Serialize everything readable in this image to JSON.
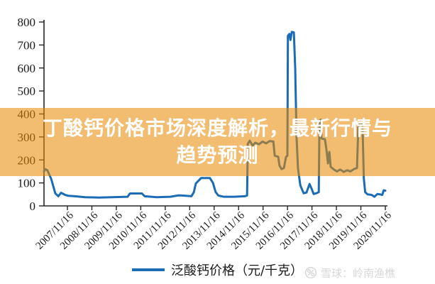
{
  "banner": {
    "line1": "丁酸钙价格市场深度解析，最新行情与",
    "line2": "趋势预测",
    "bg_color": "#E78902",
    "text_color": "#FFFFFF"
  },
  "legend": {
    "label": "泛酸钙价格（元/千克）",
    "line_color": "#1B6CB5"
  },
  "watermark": {
    "icon": "xueqiu-snowball-icon",
    "text": "雪球：岭南渔樵",
    "color": "#D7D7D7"
  },
  "chart_data": {
    "type": "line",
    "title": "",
    "xlabel": "",
    "ylabel": "",
    "ylim": [
      0,
      800
    ],
    "yticks": [
      0,
      100,
      200,
      300,
      400,
      500,
      600,
      700,
      800
    ],
    "x_tick_labels": [
      "2007/11/16",
      "2008/11/16",
      "2009/11/16",
      "2010/11/16",
      "2011/11/16",
      "2012/11/16",
      "2013/11/16",
      "2014/11/16",
      "2015/11/16",
      "2016/11/16",
      "2017/11/16",
      "2018/11/16",
      "2019/11/16",
      "2020/11/16"
    ],
    "grid": false,
    "legend_position": "bottom",
    "axis_color": "#262626",
    "series": [
      {
        "name": "泛酸钙价格（元/千克）",
        "color": "#1B6CB5",
        "points": [
          [
            0.0,
            150
          ],
          [
            0.004,
            160
          ],
          [
            0.01,
            155
          ],
          [
            0.021,
            118
          ],
          [
            0.033,
            55
          ],
          [
            0.042,
            42
          ],
          [
            0.05,
            57
          ],
          [
            0.062,
            48
          ],
          [
            0.071,
            44
          ],
          [
            0.09,
            42
          ],
          [
            0.12,
            38
          ],
          [
            0.16,
            36
          ],
          [
            0.2,
            38
          ],
          [
            0.245,
            40
          ],
          [
            0.252,
            54
          ],
          [
            0.287,
            54
          ],
          [
            0.295,
            42
          ],
          [
            0.33,
            38
          ],
          [
            0.37,
            40
          ],
          [
            0.395,
            46
          ],
          [
            0.416,
            44
          ],
          [
            0.432,
            42
          ],
          [
            0.439,
            60
          ],
          [
            0.445,
            98
          ],
          [
            0.453,
            110
          ],
          [
            0.46,
            121
          ],
          [
            0.486,
            121
          ],
          [
            0.495,
            100
          ],
          [
            0.503,
            60
          ],
          [
            0.511,
            45
          ],
          [
            0.526,
            40
          ],
          [
            0.557,
            40
          ],
          [
            0.588,
            42
          ],
          [
            0.595,
            45
          ],
          [
            0.597,
            270
          ],
          [
            0.603,
            284
          ],
          [
            0.611,
            262
          ],
          [
            0.619,
            275
          ],
          [
            0.63,
            268
          ],
          [
            0.64,
            280
          ],
          [
            0.651,
            272
          ],
          [
            0.661,
            282
          ],
          [
            0.672,
            280
          ],
          [
            0.676,
            218
          ],
          [
            0.686,
            214
          ],
          [
            0.69,
            175
          ],
          [
            0.696,
            160
          ],
          [
            0.703,
            165
          ],
          [
            0.709,
            213
          ],
          [
            0.713,
            218
          ],
          [
            0.7145,
            740
          ],
          [
            0.719,
            748
          ],
          [
            0.722,
            722
          ],
          [
            0.726,
            757
          ],
          [
            0.732,
            755
          ],
          [
            0.736,
            600
          ],
          [
            0.74,
            300
          ],
          [
            0.744,
            163
          ],
          [
            0.751,
            90
          ],
          [
            0.757,
            68
          ],
          [
            0.761,
            55
          ],
          [
            0.769,
            58
          ],
          [
            0.778,
            95
          ],
          [
            0.784,
            75
          ],
          [
            0.79,
            52
          ],
          [
            0.798,
            55
          ],
          [
            0.805,
            60
          ],
          [
            0.807,
            370
          ],
          [
            0.811,
            375
          ],
          [
            0.813,
            293
          ],
          [
            0.823,
            290
          ],
          [
            0.827,
            250
          ],
          [
            0.832,
            185
          ],
          [
            0.836,
            235
          ],
          [
            0.84,
            170
          ],
          [
            0.848,
            160
          ],
          [
            0.858,
            150
          ],
          [
            0.868,
            158
          ],
          [
            0.878,
            148
          ],
          [
            0.888,
            155
          ],
          [
            0.898,
            150
          ],
          [
            0.908,
            160
          ],
          [
            0.917,
            165
          ],
          [
            0.921,
            350
          ],
          [
            0.929,
            360
          ],
          [
            0.933,
            355
          ],
          [
            0.937,
            120
          ],
          [
            0.941,
            60
          ],
          [
            0.948,
            50
          ],
          [
            0.96,
            48
          ],
          [
            0.968,
            40
          ],
          [
            0.977,
            52
          ],
          [
            0.985,
            50
          ],
          [
            0.991,
            48
          ],
          [
            0.9955,
            68
          ],
          [
            1.0,
            66
          ]
        ]
      }
    ]
  }
}
